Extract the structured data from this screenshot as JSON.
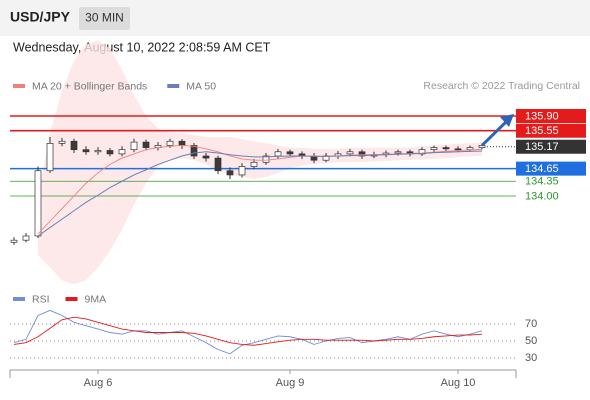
{
  "header": {
    "symbol": "USD/JPY",
    "interval": "30 MIN",
    "timestamp": "Wednesday, August 10, 2022 2:08:59 AM CET"
  },
  "chart_data": [
    {
      "type": "candlestick",
      "source": "Research © 2022 Trading Central",
      "categories": [
        null,
        null,
        null,
        null,
        null,
        null,
        null,
        "Aug 6",
        null,
        null,
        null,
        null,
        null,
        null,
        null,
        null,
        null,
        null,
        null,
        null,
        null,
        null,
        null,
        "Aug 9",
        null,
        null,
        null,
        null,
        null,
        null,
        null,
        null,
        null,
        null,
        null,
        null,
        null,
        "Aug 10",
        null,
        null
      ],
      "open": [
        132.9,
        132.95,
        133.05,
        134.6,
        135.25,
        135.3,
        135.1,
        135.05,
        135.08,
        135.0,
        135.1,
        135.28,
        135.15,
        135.2,
        135.3,
        135.2,
        134.95,
        134.9,
        134.6,
        134.5,
        134.7,
        134.8,
        134.95,
        135.05,
        135.0,
        134.95,
        134.85,
        134.95,
        135.0,
        135.05,
        134.95,
        134.98,
        135.02,
        135.05,
        135.0,
        135.1,
        135.15,
        135.12,
        135.1,
        135.15
      ],
      "high": [
        133.02,
        133.12,
        134.7,
        135.4,
        135.38,
        135.36,
        135.18,
        135.16,
        135.14,
        135.18,
        135.36,
        135.34,
        135.28,
        135.36,
        135.35,
        135.26,
        135.02,
        134.96,
        134.68,
        134.78,
        134.88,
        135.02,
        135.12,
        135.1,
        135.06,
        135.02,
        135.02,
        135.07,
        135.12,
        135.1,
        135.05,
        135.08,
        135.1,
        135.1,
        135.16,
        135.2,
        135.2,
        135.18,
        135.2,
        135.24
      ],
      "low": [
        132.84,
        132.9,
        133.0,
        134.55,
        135.18,
        135.02,
        134.98,
        134.98,
        134.94,
        134.94,
        135.04,
        135.08,
        135.08,
        135.14,
        135.12,
        134.88,
        134.82,
        134.52,
        134.4,
        134.44,
        134.64,
        134.74,
        134.88,
        134.94,
        134.88,
        134.78,
        134.8,
        134.88,
        134.94,
        134.88,
        134.9,
        134.92,
        134.96,
        134.94,
        134.95,
        135.04,
        135.06,
        135.04,
        135.05,
        135.1
      ],
      "close": [
        132.95,
        133.05,
        134.6,
        135.25,
        135.3,
        135.1,
        135.05,
        135.08,
        135.0,
        135.1,
        135.28,
        135.15,
        135.2,
        135.3,
        135.2,
        134.95,
        134.9,
        134.6,
        134.5,
        134.7,
        134.8,
        134.95,
        135.05,
        135.0,
        134.95,
        134.85,
        134.95,
        135.0,
        135.05,
        134.95,
        134.98,
        135.02,
        135.05,
        135.0,
        135.1,
        135.15,
        135.12,
        135.1,
        135.15,
        135.2
      ],
      "up_color": "#ffffff",
      "down_color": "#3b3b3b",
      "wick_color": "#333333",
      "series": [
        {
          "name": "MA 20 + Bollinger Bands",
          "color": "#f08080",
          "band_color": "#fde3e3",
          "values": [
            null,
            null,
            133.1,
            133.4,
            133.7,
            134.0,
            134.3,
            134.55,
            134.75,
            134.9,
            135.0,
            135.1,
            135.15,
            135.18,
            135.2,
            135.18,
            135.12,
            135.05,
            134.95,
            134.88,
            134.85,
            134.85,
            134.88,
            134.92,
            134.95,
            134.95,
            134.94,
            134.95,
            134.97,
            134.98,
            134.98,
            134.99,
            135.0,
            135.01,
            135.02,
            135.04,
            135.06,
            135.08,
            135.09,
            135.11
          ],
          "band_upper": [
            null,
            null,
            134.0,
            135.5,
            136.5,
            137.2,
            137.6,
            137.7,
            137.5,
            137.0,
            136.4,
            135.9,
            135.6,
            135.5,
            135.5,
            135.45,
            135.4,
            135.4,
            135.4,
            135.35,
            135.3,
            135.25,
            135.2,
            135.15,
            135.15,
            135.12,
            135.12,
            135.12,
            135.15,
            135.15,
            135.15,
            135.15,
            135.15,
            135.15,
            135.18,
            135.2,
            135.22,
            135.24,
            135.25,
            135.27
          ],
          "band_lower": [
            null,
            null,
            132.6,
            132.3,
            132.0,
            131.9,
            132.0,
            132.3,
            132.7,
            133.2,
            133.8,
            134.3,
            134.7,
            134.85,
            134.9,
            134.85,
            134.75,
            134.6,
            134.5,
            134.45,
            134.4,
            134.45,
            134.55,
            134.65,
            134.72,
            134.76,
            134.78,
            134.8,
            134.8,
            134.8,
            134.82,
            134.83,
            134.85,
            134.86,
            134.87,
            134.88,
            134.9,
            134.92,
            134.94,
            134.96
          ]
        },
        {
          "name": "MA 50",
          "color": "#6a7fb8",
          "values": [
            null,
            null,
            133.05,
            133.25,
            133.45,
            133.65,
            133.85,
            134.02,
            134.2,
            134.35,
            134.5,
            134.62,
            134.75,
            134.85,
            134.95,
            135.02,
            135.05,
            135.02,
            134.98,
            134.95,
            134.93,
            134.93,
            134.94,
            134.95,
            134.95,
            134.94,
            134.94,
            134.95,
            134.96,
            134.96,
            134.97,
            134.98,
            134.99,
            135.0,
            135.01,
            135.03,
            135.04,
            135.05,
            135.06,
            135.07
          ]
        }
      ],
      "levels": [
        {
          "value": 135.9,
          "label": "135.90",
          "color": "#e31b1b",
          "badge": true,
          "line": "solid"
        },
        {
          "value": 135.55,
          "color": "#e31b1b",
          "badge": true,
          "line": "solid"
        },
        {
          "value": 135.17,
          "color": "#333333",
          "badge": true,
          "line": "dotted"
        },
        {
          "value": 134.65,
          "color": "#1f6fe0",
          "badge": true,
          "line": "solid"
        },
        {
          "value": 134.35,
          "color": "#2e9a2e",
          "badge": false,
          "line": "thin"
        },
        {
          "value": 134.0,
          "label": "134.00",
          "color": "#2e9a2e",
          "badge": false,
          "line": "thin"
        }
      ],
      "ylim": [
        131.9,
        136.28
      ]
    },
    {
      "type": "line",
      "series": [
        {
          "name": "RSI",
          "color": "#6f8fd8",
          "values": [
            48,
            52,
            80,
            86,
            80,
            72,
            68,
            64,
            60,
            58,
            62,
            62,
            58,
            60,
            62,
            55,
            48,
            40,
            35,
            45,
            48,
            52,
            56,
            55,
            52,
            46,
            50,
            53,
            54,
            48,
            50,
            52,
            55,
            52,
            58,
            62,
            58,
            55,
            58,
            62
          ]
        },
        {
          "name": "9MA",
          "color": "#e31b1b",
          "values": [
            46,
            48,
            55,
            65,
            75,
            78,
            76,
            72,
            68,
            64,
            62,
            60,
            60,
            60,
            60,
            59,
            56,
            52,
            48,
            46,
            45,
            47,
            49,
            51,
            52,
            52,
            51,
            51,
            51,
            51,
            50,
            51,
            52,
            52,
            53,
            55,
            56,
            57,
            57,
            58
          ]
        }
      ],
      "ylim": [
        10,
        90
      ],
      "yticks": [
        70,
        50,
        30
      ],
      "grid": true
    }
  ]
}
